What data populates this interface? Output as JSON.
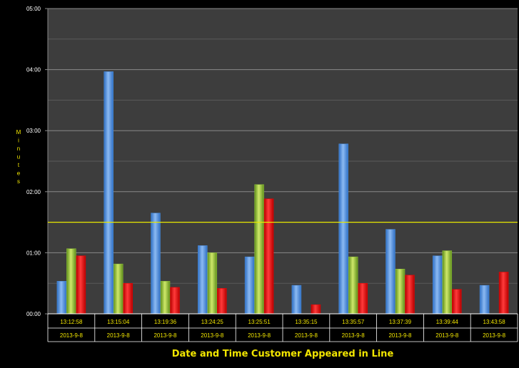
{
  "chart_data": {
    "type": "bar",
    "title": "",
    "xlabel": "Date and Time Customer Appeared in Line",
    "ylabel": "Minutes",
    "y_unit": "seconds",
    "ylim": [
      0,
      300
    ],
    "y_ticks": [
      "00:00",
      "01:00",
      "02:00",
      "03:00",
      "04:00",
      "05:00"
    ],
    "grid": true,
    "legend": "none",
    "categories": [
      {
        "time": "13:12:58",
        "date": "2013-9-8"
      },
      {
        "time": "13:15:04",
        "date": "2013-9-8"
      },
      {
        "time": "13:19:36",
        "date": "2013-9-8"
      },
      {
        "time": "13:24:25",
        "date": "2013-9-8"
      },
      {
        "time": "13:25:51",
        "date": "2013-9-8"
      },
      {
        "time": "13:35:15",
        "date": "2013-9-8"
      },
      {
        "time": "13:35:57",
        "date": "2013-9-8"
      },
      {
        "time": "13:37:39",
        "date": "2013-9-8"
      },
      {
        "time": "13:39:44",
        "date": "2013-9-8"
      },
      {
        "time": "13:43:58",
        "date": "2013-9-8"
      }
    ],
    "series": [
      {
        "color": "#4a8fe0",
        "values": [
          32,
          238,
          99,
          67,
          56,
          28,
          167,
          83,
          57,
          28
        ]
      },
      {
        "color": "#8fc33a",
        "values": [
          64,
          49,
          32,
          60,
          127,
          0,
          56,
          44,
          62,
          0
        ]
      },
      {
        "color": "#ee0000",
        "values": [
          57,
          30,
          26,
          25,
          113,
          9,
          30,
          38,
          24,
          41
        ]
      }
    ],
    "reference_line": {
      "value": 90,
      "color": "#e8e800"
    }
  }
}
